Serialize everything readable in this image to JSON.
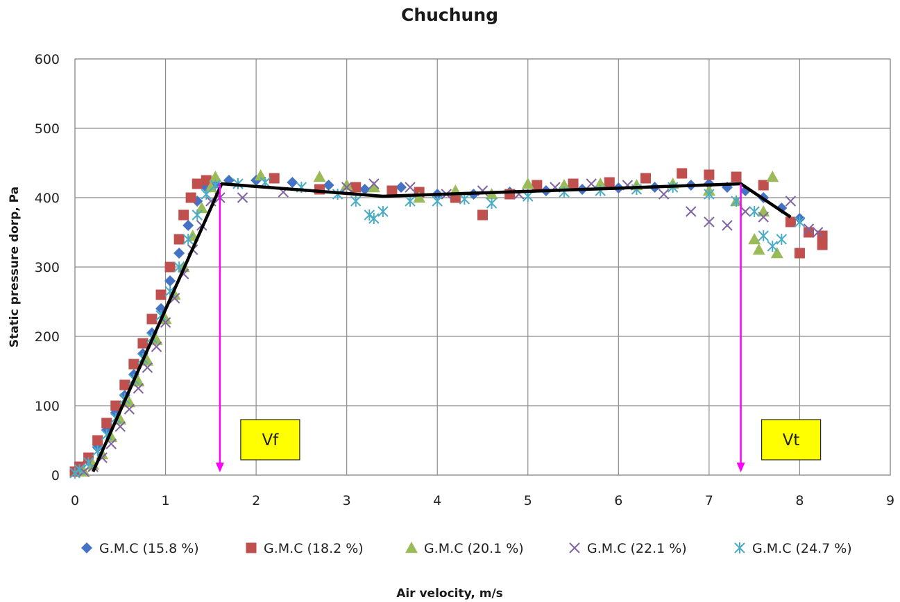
{
  "chart_data": {
    "type": "scatter",
    "title": "Chuchung",
    "xlabel": "Air velocity, m/s",
    "ylabel": "Static pressure dorp, Pa",
    "xlim": [
      0,
      9
    ],
    "ylim": [
      0,
      600
    ],
    "xticks": [
      "0",
      "1",
      "2",
      "3",
      "4",
      "5",
      "6",
      "7",
      "8",
      "9"
    ],
    "yticks": [
      "0",
      "100",
      "200",
      "300",
      "400",
      "500",
      "600"
    ],
    "grid": true,
    "legend_position": "bottom",
    "series": [
      {
        "name": "G.M.C (15.8 %)",
        "marker": "diamond",
        "color": "#4472c4",
        "points": [
          [
            0.0,
            5
          ],
          [
            0.05,
            10
          ],
          [
            0.15,
            20
          ],
          [
            0.25,
            40
          ],
          [
            0.35,
            65
          ],
          [
            0.45,
            90
          ],
          [
            0.55,
            115
          ],
          [
            0.65,
            145
          ],
          [
            0.75,
            175
          ],
          [
            0.85,
            205
          ],
          [
            0.95,
            240
          ],
          [
            1.05,
            280
          ],
          [
            1.15,
            320
          ],
          [
            1.25,
            360
          ],
          [
            1.35,
            395
          ],
          [
            1.45,
            415
          ],
          [
            1.55,
            420
          ],
          [
            1.7,
            425
          ],
          [
            2.0,
            425
          ],
          [
            2.4,
            422
          ],
          [
            2.8,
            418
          ],
          [
            3.2,
            412
          ],
          [
            3.6,
            415
          ],
          [
            4.0,
            405
          ],
          [
            4.4,
            405
          ],
          [
            4.8,
            408
          ],
          [
            5.2,
            410
          ],
          [
            5.6,
            412
          ],
          [
            6.0,
            414
          ],
          [
            6.4,
            415
          ],
          [
            6.8,
            418
          ],
          [
            7.0,
            420
          ],
          [
            7.2,
            415
          ],
          [
            7.4,
            410
          ],
          [
            7.6,
            400
          ],
          [
            7.8,
            385
          ],
          [
            8.0,
            370
          ]
        ]
      },
      {
        "name": "G.M.C (18.2 %)",
        "marker": "square",
        "color": "#c0504d",
        "points": [
          [
            0.0,
            5
          ],
          [
            0.05,
            12
          ],
          [
            0.15,
            25
          ],
          [
            0.25,
            50
          ],
          [
            0.35,
            75
          ],
          [
            0.45,
            100
          ],
          [
            0.55,
            130
          ],
          [
            0.65,
            160
          ],
          [
            0.75,
            190
          ],
          [
            0.85,
            225
          ],
          [
            0.95,
            260
          ],
          [
            1.05,
            300
          ],
          [
            1.15,
            340
          ],
          [
            1.2,
            375
          ],
          [
            1.28,
            400
          ],
          [
            1.35,
            420
          ],
          [
            1.45,
            425
          ],
          [
            2.2,
            428
          ],
          [
            2.7,
            412
          ],
          [
            3.1,
            415
          ],
          [
            3.5,
            410
          ],
          [
            3.8,
            408
          ],
          [
            4.2,
            400
          ],
          [
            4.5,
            375
          ],
          [
            4.8,
            405
          ],
          [
            5.1,
            418
          ],
          [
            5.5,
            420
          ],
          [
            5.9,
            422
          ],
          [
            6.3,
            428
          ],
          [
            6.7,
            435
          ],
          [
            7.0,
            433
          ],
          [
            7.3,
            430
          ],
          [
            7.6,
            418
          ],
          [
            7.9,
            365
          ],
          [
            8.0,
            320
          ],
          [
            8.1,
            350
          ],
          [
            8.25,
            345
          ],
          [
            8.25,
            332
          ]
        ]
      },
      {
        "name": "G.M.C (20.1 %)",
        "marker": "triangle",
        "color": "#9bbb59",
        "points": [
          [
            0.1,
            5
          ],
          [
            0.2,
            15
          ],
          [
            0.3,
            30
          ],
          [
            0.4,
            55
          ],
          [
            0.5,
            80
          ],
          [
            0.6,
            105
          ],
          [
            0.7,
            135
          ],
          [
            0.8,
            165
          ],
          [
            0.9,
            195
          ],
          [
            1.0,
            225
          ],
          [
            1.1,
            260
          ],
          [
            1.2,
            300
          ],
          [
            1.3,
            345
          ],
          [
            1.4,
            385
          ],
          [
            1.5,
            415
          ],
          [
            1.55,
            430
          ],
          [
            2.05,
            432
          ],
          [
            2.7,
            430
          ],
          [
            3.0,
            418
          ],
          [
            3.3,
            415
          ],
          [
            3.8,
            400
          ],
          [
            4.2,
            410
          ],
          [
            4.6,
            405
          ],
          [
            5.0,
            420
          ],
          [
            5.4,
            418
          ],
          [
            5.8,
            420
          ],
          [
            6.2,
            418
          ],
          [
            6.6,
            420
          ],
          [
            7.0,
            410
          ],
          [
            7.3,
            395
          ],
          [
            7.5,
            340
          ],
          [
            7.55,
            325
          ],
          [
            7.7,
            430
          ],
          [
            7.75,
            320
          ],
          [
            7.6,
            380
          ]
        ]
      },
      {
        "name": "G.M.C (22.1 %)",
        "marker": "x",
        "color": "#8064a2",
        "points": [
          [
            0.1,
            5
          ],
          [
            0.2,
            12
          ],
          [
            0.3,
            25
          ],
          [
            0.4,
            45
          ],
          [
            0.5,
            70
          ],
          [
            0.6,
            95
          ],
          [
            0.7,
            125
          ],
          [
            0.8,
            155
          ],
          [
            0.9,
            185
          ],
          [
            1.0,
            220
          ],
          [
            1.1,
            255
          ],
          [
            1.2,
            290
          ],
          [
            1.3,
            325
          ],
          [
            1.4,
            360
          ],
          [
            1.5,
            395
          ],
          [
            1.6,
            400
          ],
          [
            1.85,
            400
          ],
          [
            2.3,
            408
          ],
          [
            3.0,
            415
          ],
          [
            3.3,
            420
          ],
          [
            3.7,
            415
          ],
          [
            4.1,
            405
          ],
          [
            4.5,
            410
          ],
          [
            4.9,
            405
          ],
          [
            5.3,
            415
          ],
          [
            5.7,
            420
          ],
          [
            6.1,
            418
          ],
          [
            6.5,
            405
          ],
          [
            6.8,
            380
          ],
          [
            7.0,
            365
          ],
          [
            7.2,
            360
          ],
          [
            7.4,
            380
          ],
          [
            7.6,
            372
          ],
          [
            7.9,
            395
          ],
          [
            8.1,
            355
          ],
          [
            8.2,
            350
          ]
        ]
      },
      {
        "name": "G.M.C (24.7 %)",
        "marker": "asterisk",
        "color": "#4bacc6",
        "points": [
          [
            0.0,
            3
          ],
          [
            0.05,
            8
          ],
          [
            0.15,
            18
          ],
          [
            0.25,
            35
          ],
          [
            0.35,
            58
          ],
          [
            0.45,
            82
          ],
          [
            0.55,
            110
          ],
          [
            0.65,
            138
          ],
          [
            0.75,
            168
          ],
          [
            0.85,
            198
          ],
          [
            0.95,
            230
          ],
          [
            1.05,
            265
          ],
          [
            1.15,
            300
          ],
          [
            1.25,
            340
          ],
          [
            1.35,
            375
          ],
          [
            1.45,
            405
          ],
          [
            1.55,
            418
          ],
          [
            1.8,
            420
          ],
          [
            2.1,
            422
          ],
          [
            2.5,
            415
          ],
          [
            2.9,
            405
          ],
          [
            3.1,
            395
          ],
          [
            3.25,
            375
          ],
          [
            3.3,
            370
          ],
          [
            3.4,
            380
          ],
          [
            3.7,
            395
          ],
          [
            4.0,
            395
          ],
          [
            4.3,
            398
          ],
          [
            4.6,
            392
          ],
          [
            5.0,
            402
          ],
          [
            5.4,
            408
          ],
          [
            5.8,
            410
          ],
          [
            6.2,
            412
          ],
          [
            6.6,
            415
          ],
          [
            7.0,
            405
          ],
          [
            7.3,
            395
          ],
          [
            7.5,
            380
          ],
          [
            7.6,
            345
          ],
          [
            7.7,
            330
          ],
          [
            7.8,
            340
          ],
          [
            8.0,
            365
          ]
        ]
      }
    ],
    "trend_line": {
      "color": "#000000",
      "points": [
        [
          0.2,
          5
        ],
        [
          1.62,
          420
        ],
        [
          3.4,
          402
        ],
        [
          5.2,
          410
        ],
        [
          7.35,
          420
        ],
        [
          7.9,
          372
        ]
      ]
    },
    "annotations": [
      {
        "label": "Vf",
        "x": 1.6,
        "arrow_top": 420,
        "arrow_bottom": 0,
        "color": "#ff00ff"
      },
      {
        "label": "Vt",
        "x": 7.35,
        "arrow_top": 420,
        "arrow_bottom": 0,
        "color": "#ff00ff"
      }
    ]
  }
}
